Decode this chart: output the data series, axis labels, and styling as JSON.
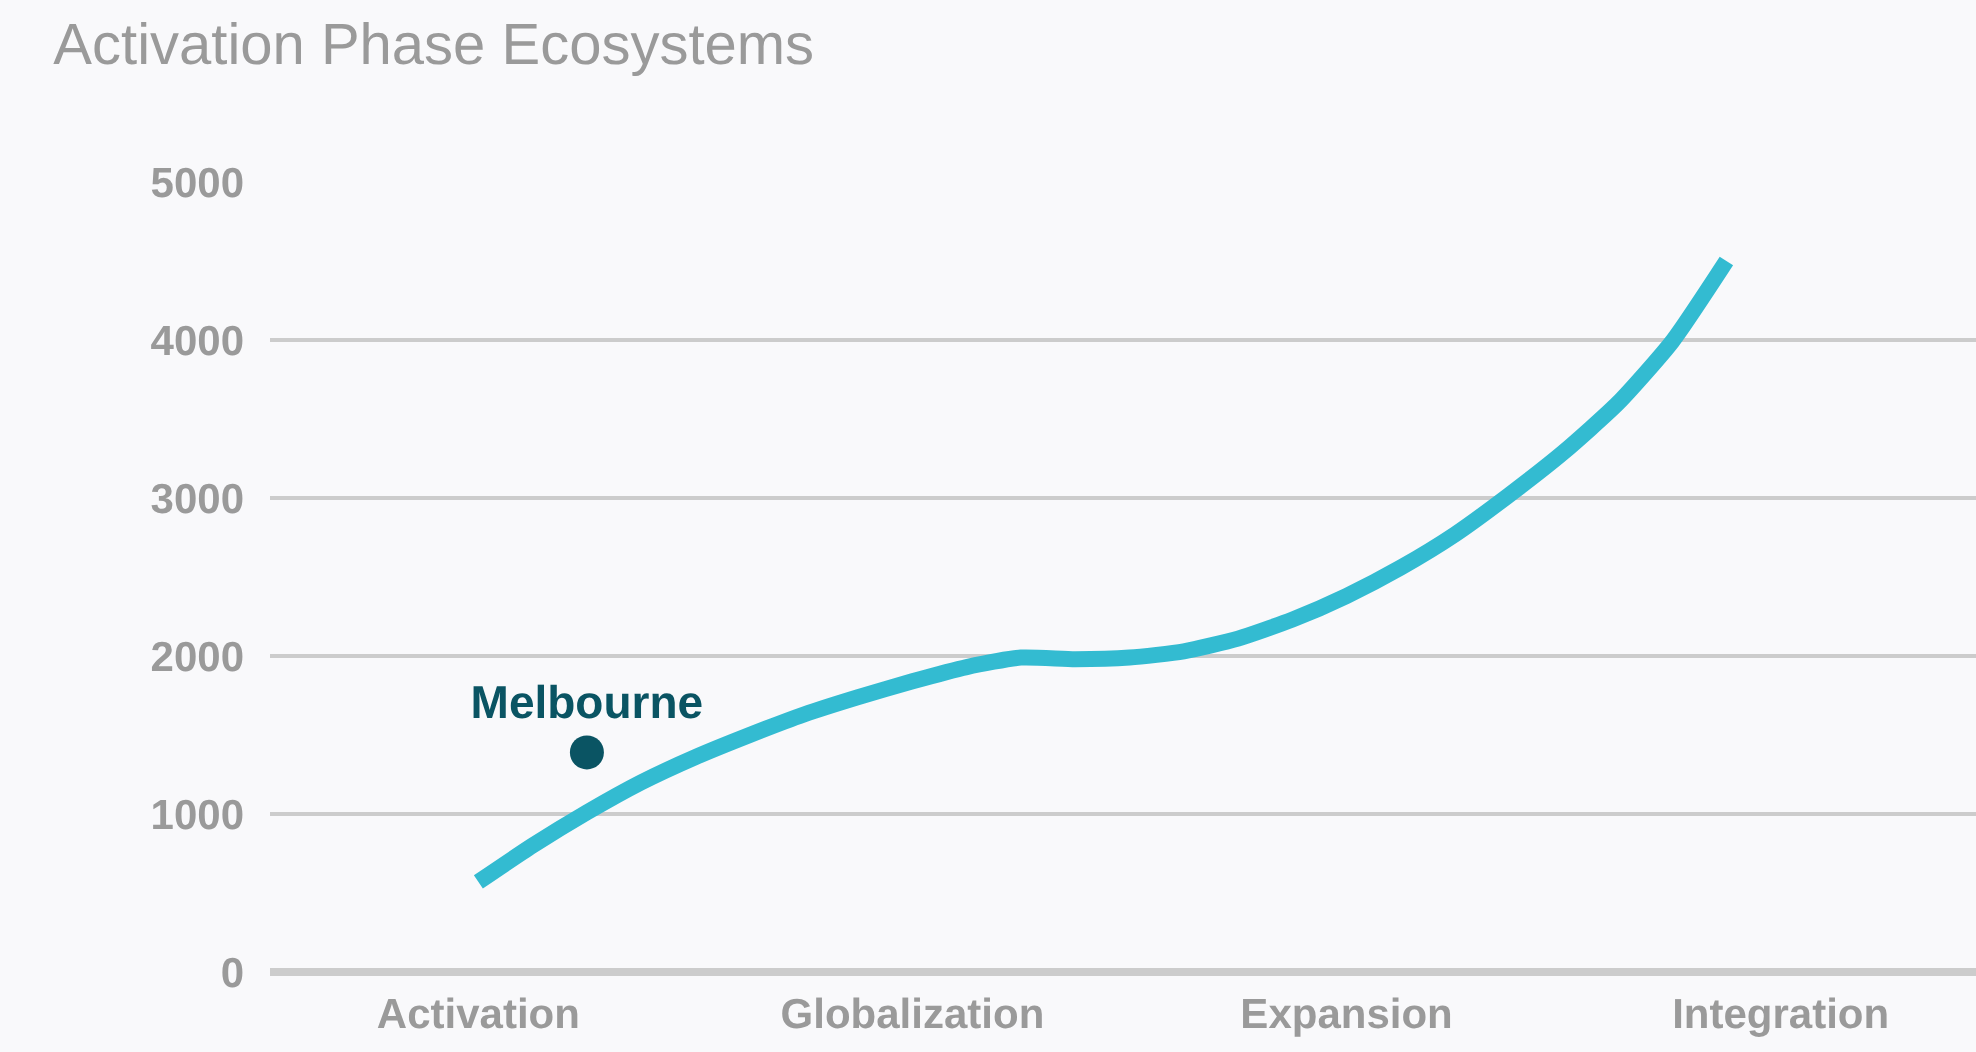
{
  "chart_data": {
    "type": "line",
    "title": "Activation Phase Ecosystems",
    "categories": [
      "Activation",
      null,
      null,
      null,
      null,
      null,
      null,
      null,
      "Globalization",
      null,
      null,
      null,
      null,
      null,
      null,
      null,
      "Expansion",
      null,
      null,
      null,
      null,
      null,
      null,
      null,
      "Integration"
    ],
    "ylim": [
      0,
      5000
    ],
    "yticks": [
      0,
      1000,
      2000,
      3000,
      4000,
      5000
    ],
    "grid": "y",
    "marker": "none",
    "line_style": "solid",
    "series": [
      {
        "color": "#33bbd1",
        "values": [
          570,
          800,
          1010,
          1200,
          1360,
          1500,
          1630,
          1740,
          1840,
          1930,
          1990,
          1980,
          1990,
          2030,
          2110,
          2230,
          2380,
          2560,
          2770,
          3020,
          3290,
          3600,
          3990,
          4500,
          null
        ]
      },
      {
        "type": "scatter",
        "name": "Melbourne",
        "color": "#0a5463",
        "marker": "circle",
        "values": [
          null,
          null,
          1390,
          null,
          null,
          null,
          null,
          null,
          null,
          null,
          null,
          null,
          null,
          null,
          null,
          null,
          null,
          null,
          null,
          null,
          null,
          null,
          null,
          null,
          null
        ]
      }
    ]
  }
}
